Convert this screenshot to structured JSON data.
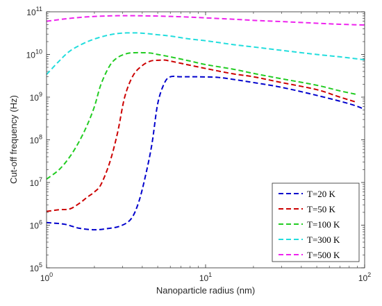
{
  "chart_data": {
    "type": "line",
    "title": "",
    "xlabel": "Nanoparticle radius (nm)",
    "ylabel": "Cut-off frequency (Hz)",
    "xscale": "log",
    "yscale": "log",
    "xlim": [
      1,
      100
    ],
    "ylim": [
      100000,
      100000000000
    ],
    "grid": false,
    "legend_position": "bottom-right",
    "x_ticks": [
      {
        "value": 1,
        "base": "10",
        "exp": "0"
      },
      {
        "value": 10,
        "base": "10",
        "exp": "1"
      },
      {
        "value": 100,
        "base": "10",
        "exp": "2"
      }
    ],
    "y_ticks": [
      {
        "value": 100000,
        "base": "10",
        "exp": "5"
      },
      {
        "value": 1000000,
        "base": "10",
        "exp": "6"
      },
      {
        "value": 10000000,
        "base": "10",
        "exp": "7"
      },
      {
        "value": 100000000,
        "base": "10",
        "exp": "8"
      },
      {
        "value": 1000000000,
        "base": "10",
        "exp": "9"
      },
      {
        "value": 10000000000,
        "base": "10",
        "exp": "10"
      },
      {
        "value": 100000000000,
        "base": "10",
        "exp": "11"
      }
    ],
    "series": [
      {
        "name": "T=20 K",
        "color": "#0000cc",
        "x": [
          1,
          1.3,
          1.6,
          2.0,
          2.4,
          2.9,
          3.4,
          3.8,
          4.2,
          4.6,
          5.0,
          5.5,
          6.0,
          7,
          9,
          12,
          15,
          20,
          30,
          50,
          80,
          100
        ],
        "y": [
          1150000,
          1050000,
          850000,
          780000,
          830000,
          950000,
          1400000,
          3500000,
          15000000,
          80000000,
          700000000,
          2100000000,
          3000000000,
          3000000000,
          3000000000,
          2900000000,
          2600000000,
          2200000000,
          1700000000,
          1100000000,
          700000000,
          520000000
        ]
      },
      {
        "name": "T=50 K",
        "color": "#cc0000",
        "x": [
          1,
          1.2,
          1.4,
          1.6,
          1.8,
          2.0,
          2.2,
          2.5,
          2.8,
          3.1,
          3.5,
          4.0,
          4.5,
          5.0,
          5.5,
          6,
          7,
          10,
          15,
          20,
          30,
          50,
          70,
          90
        ],
        "y": [
          2100000,
          2300000,
          2400000,
          3200000,
          4500000,
          6000000,
          9000000,
          30000000,
          150000000,
          1000000000,
          3200000000,
          5500000000,
          7000000000,
          7300000000,
          7400000000,
          7000000000,
          6200000000,
          4700000000,
          3500000000,
          3000000000,
          2200000000,
          1500000000,
          1000000000,
          750000000
        ]
      },
      {
        "name": "T=100 K",
        "color": "#22cc22",
        "x": [
          1,
          1.2,
          1.4,
          1.6,
          1.8,
          2.0,
          2.2,
          2.5,
          2.8,
          3.2,
          3.6,
          4.0,
          4.5,
          5.0,
          6,
          8,
          10,
          15,
          20,
          30,
          50,
          70,
          90
        ],
        "y": [
          12000000,
          20000000,
          40000000,
          90000000,
          220000000,
          600000000,
          2000000000,
          5500000000,
          8500000000,
          10500000000,
          11000000000,
          11000000000,
          10800000000,
          10000000000,
          8800000000,
          7000000000,
          5800000000,
          4500000000,
          3600000000,
          2700000000,
          1900000000,
          1400000000,
          1150000000
        ]
      },
      {
        "name": "T=300 K",
        "color": "#22dddd",
        "x": [
          1,
          1.2,
          1.4,
          1.7,
          2.0,
          2.4,
          2.8,
          3.2,
          3.7,
          4.2,
          5,
          6,
          8,
          10,
          15,
          20,
          30,
          50,
          70,
          100
        ],
        "y": [
          3400000000,
          7000000000,
          12000000000,
          18000000000,
          23000000000,
          28000000000,
          31000000000,
          32000000000,
          32000000000,
          31000000000,
          29000000000,
          27000000000,
          23000000000,
          21000000000,
          17000000000,
          15000000000,
          12500000000,
          10000000000,
          8800000000,
          7500000000
        ]
      },
      {
        "name": "T=500 K",
        "color": "#ee22ee",
        "x": [
          1,
          1.3,
          1.7,
          2.2,
          2.8,
          3.5,
          4.5,
          6,
          8,
          10,
          15,
          20,
          30,
          50,
          70,
          100
        ],
        "y": [
          60000000000,
          68000000000,
          75000000000,
          79000000000,
          81000000000,
          81000000000,
          80000000000,
          78000000000,
          75000000000,
          72000000000,
          67000000000,
          63000000000,
          59000000000,
          54000000000,
          51000000000,
          49000000000
        ]
      }
    ]
  }
}
